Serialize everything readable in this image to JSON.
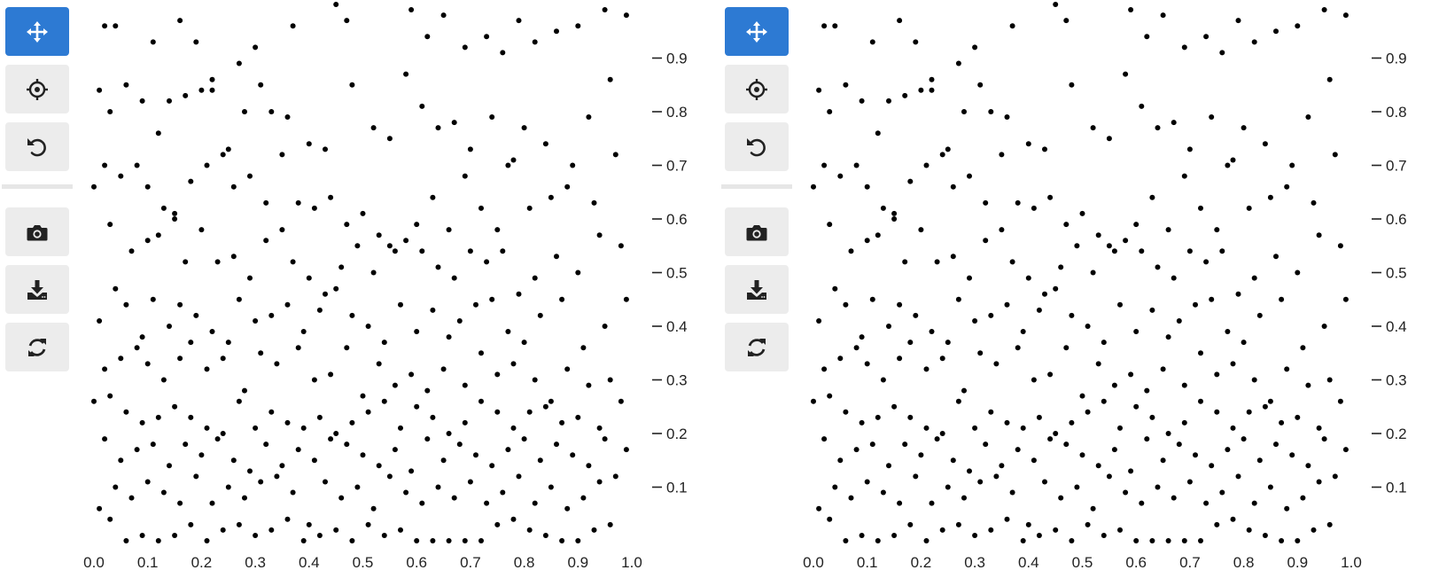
{
  "colors": {
    "active_tool": "#2d7ad3",
    "tool_bg": "#ececec",
    "icon": "#222222",
    "point": "#000000"
  },
  "toolbar": [
    {
      "name": "pan-tool",
      "icon": "move-icon",
      "active": true
    },
    {
      "name": "crosshair-tool",
      "icon": "crosshair-icon",
      "active": false
    },
    {
      "name": "reset-tool",
      "icon": "undo-icon",
      "active": false
    },
    {
      "name": "screenshot-tool",
      "icon": "camera-icon",
      "active": false
    },
    {
      "name": "download-tool",
      "icon": "download-icon",
      "active": false
    },
    {
      "name": "refresh-tool",
      "icon": "refresh-icon",
      "active": false
    }
  ],
  "chart_data": [
    {
      "type": "scatter",
      "title": "",
      "xlabel": "",
      "ylabel": "",
      "xlim": [
        0,
        1
      ],
      "ylim": [
        0,
        1
      ],
      "xticks": [
        "0.0",
        "0.1",
        "0.2",
        "0.3",
        "0.4",
        "0.5",
        "0.6",
        "0.7",
        "0.8",
        "0.9",
        "1.0"
      ],
      "yticks": [
        "0.1",
        "0.2",
        "0.3",
        "0.4",
        "0.5",
        "0.6",
        "0.7",
        "0.8",
        "0.9"
      ],
      "y_axis_position": "right",
      "grid": false,
      "series": [
        {
          "name": "points",
          "x": [
            0.02,
            0.04,
            0.11,
            0.16,
            0.19,
            0.22,
            0.27,
            0.3,
            0.37,
            0.45,
            0.47,
            0.59,
            0.62,
            0.65,
            0.69,
            0.73,
            0.76,
            0.79,
            0.82,
            0.86,
            0.9,
            0.95,
            0.99,
            0.01,
            0.03,
            0.06,
            0.09,
            0.12,
            0.14,
            0.17,
            0.2,
            0.22,
            0.25,
            0.28,
            0.31,
            0.33,
            0.36,
            0.4,
            0.43,
            0.48,
            0.52,
            0.55,
            0.58,
            0.61,
            0.64,
            0.67,
            0.7,
            0.74,
            0.77,
            0.8,
            0.84,
            0.88,
            0.92,
            0.96,
            0.0,
            0.02,
            0.05,
            0.08,
            0.1,
            0.13,
            0.15,
            0.18,
            0.21,
            0.24,
            0.26,
            0.29,
            0.32,
            0.35,
            0.38,
            0.41,
            0.44,
            0.47,
            0.5,
            0.53,
            0.56,
            0.6,
            0.63,
            0.66,
            0.69,
            0.72,
            0.75,
            0.78,
            0.81,
            0.85,
            0.89,
            0.93,
            0.97,
            0.03,
            0.07,
            0.1,
            0.12,
            0.15,
            0.17,
            0.2,
            0.23,
            0.26,
            0.29,
            0.32,
            0.35,
            0.37,
            0.4,
            0.43,
            0.46,
            0.49,
            0.52,
            0.55,
            0.58,
            0.61,
            0.64,
            0.67,
            0.7,
            0.73,
            0.76,
            0.79,
            0.82,
            0.86,
            0.9,
            0.94,
            0.98,
            0.01,
            0.04,
            0.06,
            0.09,
            0.11,
            0.14,
            0.16,
            0.19,
            0.22,
            0.25,
            0.27,
            0.3,
            0.33,
            0.36,
            0.39,
            0.42,
            0.45,
            0.48,
            0.51,
            0.54,
            0.57,
            0.6,
            0.63,
            0.66,
            0.68,
            0.71,
            0.74,
            0.77,
            0.8,
            0.83,
            0.87,
            0.91,
            0.95,
            0.99,
            0.02,
            0.05,
            0.08,
            0.1,
            0.13,
            0.16,
            0.18,
            0.21,
            0.24,
            0.28,
            0.31,
            0.34,
            0.38,
            0.41,
            0.44,
            0.47,
            0.5,
            0.53,
            0.56,
            0.59,
            0.62,
            0.65,
            0.69,
            0.72,
            0.75,
            0.78,
            0.82,
            0.85,
            0.88,
            0.92,
            0.96,
            0.0,
            0.03,
            0.06,
            0.09,
            0.12,
            0.15,
            0.18,
            0.21,
            0.24,
            0.27,
            0.3,
            0.33,
            0.36,
            0.39,
            0.42,
            0.45,
            0.48,
            0.51,
            0.54,
            0.57,
            0.6,
            0.63,
            0.66,
            0.69,
            0.72,
            0.75,
            0.78,
            0.81,
            0.84,
            0.87,
            0.9,
            0.94,
            0.98,
            0.02,
            0.05,
            0.08,
            0.11,
            0.14,
            0.17,
            0.2,
            0.23,
            0.26,
            0.29,
            0.32,
            0.35,
            0.38,
            0.41,
            0.44,
            0.47,
            0.5,
            0.53,
            0.56,
            0.59,
            0.62,
            0.65,
            0.68,
            0.71,
            0.74,
            0.77,
            0.8,
            0.83,
            0.86,
            0.89,
            0.92,
            0.95,
            0.99,
            0.01,
            0.04,
            0.07,
            0.1,
            0.13,
            0.16,
            0.19,
            0.22,
            0.25,
            0.28,
            0.31,
            0.34,
            0.37,
            0.4,
            0.43,
            0.46,
            0.49,
            0.52,
            0.55,
            0.58,
            0.61,
            0.64,
            0.67,
            0.7,
            0.73,
            0.76,
            0.79,
            0.82,
            0.85,
            0.88,
            0.91,
            0.94,
            0.97,
            0.03,
            0.06,
            0.09,
            0.12,
            0.15,
            0.18,
            0.21,
            0.24,
            0.27,
            0.3,
            0.33,
            0.36,
            0.39,
            0.42,
            0.45,
            0.48,
            0.51,
            0.54,
            0.57,
            0.6,
            0.63,
            0.66,
            0.69,
            0.72,
            0.75,
            0.78,
            0.81,
            0.84,
            0.87,
            0.9,
            0.93,
            0.96
          ],
          "y": [
            0.96,
            0.96,
            0.93,
            0.97,
            0.93,
            0.84,
            0.89,
            0.92,
            0.96,
            1.0,
            0.97,
            0.99,
            0.94,
            0.98,
            0.92,
            0.94,
            0.91,
            0.97,
            0.93,
            0.95,
            0.96,
            0.99,
            0.98,
            0.84,
            0.8,
            0.85,
            0.82,
            0.76,
            0.82,
            0.83,
            0.84,
            0.86,
            0.73,
            0.8,
            0.85,
            0.8,
            0.79,
            0.74,
            0.73,
            0.85,
            0.77,
            0.75,
            0.87,
            0.81,
            0.77,
            0.78,
            0.73,
            0.79,
            0.7,
            0.77,
            0.74,
            0.66,
            0.79,
            0.86,
            0.66,
            0.7,
            0.68,
            0.7,
            0.66,
            0.62,
            0.61,
            0.67,
            0.7,
            0.72,
            0.66,
            0.68,
            0.63,
            0.72,
            0.63,
            0.62,
            0.64,
            0.59,
            0.61,
            0.57,
            0.54,
            0.59,
            0.64,
            0.58,
            0.68,
            0.62,
            0.58,
            0.71,
            0.62,
            0.64,
            0.7,
            0.63,
            0.72,
            0.59,
            0.54,
            0.56,
            0.57,
            0.6,
            0.52,
            0.58,
            0.52,
            0.53,
            0.49,
            0.56,
            0.58,
            0.52,
            0.49,
            0.46,
            0.51,
            0.55,
            0.5,
            0.55,
            0.56,
            0.54,
            0.51,
            0.49,
            0.54,
            0.52,
            0.54,
            0.46,
            0.49,
            0.53,
            0.5,
            0.57,
            0.55,
            0.41,
            0.47,
            0.44,
            0.38,
            0.45,
            0.4,
            0.44,
            0.42,
            0.39,
            0.37,
            0.45,
            0.41,
            0.42,
            0.44,
            0.39,
            0.43,
            0.47,
            0.42,
            0.4,
            0.37,
            0.44,
            0.39,
            0.43,
            0.38,
            0.41,
            0.44,
            0.45,
            0.39,
            0.37,
            0.42,
            0.45,
            0.36,
            0.4,
            0.45,
            0.32,
            0.34,
            0.36,
            0.33,
            0.3,
            0.34,
            0.37,
            0.32,
            0.34,
            0.28,
            0.35,
            0.33,
            0.36,
            0.3,
            0.31,
            0.36,
            0.27,
            0.33,
            0.29,
            0.31,
            0.28,
            0.32,
            0.29,
            0.35,
            0.31,
            0.33,
            0.3,
            0.26,
            0.32,
            0.29,
            0.3,
            0.26,
            0.27,
            0.24,
            0.22,
            0.23,
            0.25,
            0.23,
            0.21,
            0.2,
            0.26,
            0.21,
            0.24,
            0.22,
            0.21,
            0.23,
            0.2,
            0.22,
            0.24,
            0.26,
            0.21,
            0.25,
            0.23,
            0.2,
            0.22,
            0.26,
            0.24,
            0.21,
            0.24,
            0.25,
            0.22,
            0.23,
            0.21,
            0.26,
            0.19,
            0.15,
            0.17,
            0.18,
            0.14,
            0.18,
            0.16,
            0.19,
            0.15,
            0.13,
            0.18,
            0.14,
            0.17,
            0.15,
            0.19,
            0.18,
            0.16,
            0.14,
            0.17,
            0.13,
            0.19,
            0.15,
            0.18,
            0.16,
            0.14,
            0.17,
            0.19,
            0.15,
            0.18,
            0.16,
            0.14,
            0.19,
            0.17,
            0.06,
            0.1,
            0.08,
            0.11,
            0.09,
            0.07,
            0.12,
            0.07,
            0.1,
            0.08,
            0.11,
            0.12,
            0.09,
            0.03,
            0.11,
            0.08,
            0.1,
            0.06,
            0.12,
            0.09,
            0.07,
            0.1,
            0.08,
            0.11,
            0.07,
            0.09,
            0.12,
            0.07,
            0.1,
            0.06,
            0.08,
            0.11,
            0.12,
            0.04,
            0.0,
            0.01,
            0.0,
            0.01,
            0.03,
            0.0,
            0.02,
            0.03,
            0.01,
            0.02,
            0.04,
            0.0,
            0.01,
            0.02,
            0.0,
            0.03,
            0.01,
            0.02,
            0.0,
            0.0,
            0.0,
            0.0,
            0.0,
            0.03,
            0.04,
            0.02,
            0.01,
            0.0,
            0.0,
            0.02,
            0.03
          ]
        }
      ]
    },
    {
      "type": "scatter",
      "title": "",
      "xlabel": "",
      "ylabel": "",
      "xlim": [
        0,
        1
      ],
      "ylim": [
        0,
        1
      ],
      "xticks": [
        "0.0",
        "0.1",
        "0.2",
        "0.3",
        "0.4",
        "0.5",
        "0.6",
        "0.7",
        "0.8",
        "0.9",
        "1.0"
      ],
      "yticks": [
        "0.1",
        "0.2",
        "0.3",
        "0.4",
        "0.5",
        "0.6",
        "0.7",
        "0.8",
        "0.9"
      ],
      "y_axis_position": "right",
      "grid": false,
      "series": [
        {
          "name": "points",
          "same_as_chart": 0
        }
      ]
    }
  ]
}
